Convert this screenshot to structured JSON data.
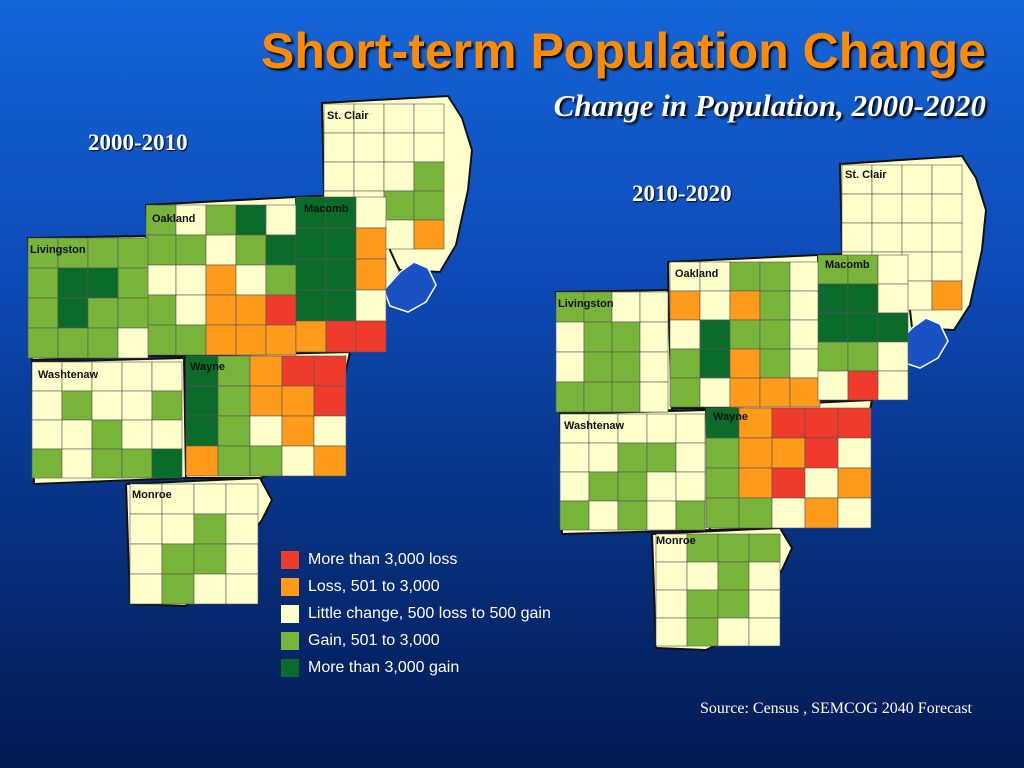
{
  "title": "Short-term Population Change",
  "subtitle": "Change in Population, 2000-2020",
  "colors": {
    "title": "#ff8c00",
    "loss_large": "#ef3b2c",
    "loss_small": "#ff9a1a",
    "little_change": "#ffffcc",
    "gain_small": "#78b33a",
    "gain_large": "#0b6b2a",
    "water": "#1a52c4"
  },
  "maps": [
    {
      "period": "2000-2010",
      "counties": [
        "St. Clair",
        "Oakland",
        "Macomb",
        "Livingston",
        "Washtenaw",
        "Wayne",
        "Monroe"
      ]
    },
    {
      "period": "2010-2020",
      "counties": [
        "St. Clair",
        "Oakland",
        "Macomb",
        "Livingston",
        "Washtenaw",
        "Wayne",
        "Monroe"
      ]
    }
  ],
  "legend": [
    {
      "label": "More than 3,000 loss",
      "color": "#ef3b2c"
    },
    {
      "label": "Loss, 501 to 3,000",
      "color": "#ff9a1a"
    },
    {
      "label": "Little change, 500 loss to 500 gain",
      "color": "#ffffcc"
    },
    {
      "label": "Gain, 501 to 3,000",
      "color": "#78b33a"
    },
    {
      "label": "More than 3,000 gain",
      "color": "#0b6b2a"
    }
  ],
  "source": "Source: Census , SEMCOG 2040 Forecast"
}
